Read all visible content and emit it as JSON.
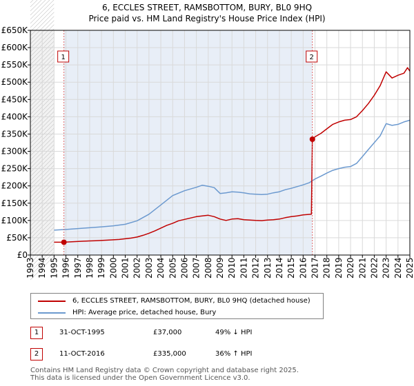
{
  "title": "6, ECCLES STREET, RAMSBOTTOM, BURY, BL0 9HQ",
  "subtitle": "Price paid vs. HM Land Registry's House Price Index (HPI)",
  "colors": {
    "property": "#c00000",
    "hpi": "#6b99cf",
    "grid": "#d9d9d9",
    "shade": "#e8eef7",
    "marker_line": "#e06666"
  },
  "legend": {
    "property_label": "6, ECCLES STREET, RAMSBOTTOM, BURY, BL0 9HQ (detached house)",
    "hpi_label": "HPI: Average price, detached house, Bury"
  },
  "transactions": [
    {
      "id": "1",
      "date": "31-OCT-1995",
      "price": "£37,000",
      "hpi_diff": "49% ↓ HPI"
    },
    {
      "id": "2",
      "date": "11-OCT-2016",
      "price": "£335,000",
      "hpi_diff": "36% ↑ HPI"
    }
  ],
  "footer": {
    "line1": "Contains HM Land Registry data © Crown copyright and database right 2025.",
    "line2": "This data is licensed under the Open Government Licence v3.0."
  },
  "chart_data": {
    "type": "line",
    "title": "6, ECCLES STREET, RAMSBOTTOM, BURY, BL0 9HQ",
    "subtitle": "Price paid vs. HM Land Registry's House Price Index (HPI)",
    "xlabel": "",
    "ylabel": "",
    "xlim": [
      1993,
      2025
    ],
    "ylim": [
      0,
      650000
    ],
    "y_ticks": [
      0,
      50000,
      100000,
      150000,
      200000,
      250000,
      300000,
      350000,
      400000,
      450000,
      500000,
      550000,
      600000,
      650000
    ],
    "y_tick_labels": [
      "£0",
      "£50K",
      "£100K",
      "£150K",
      "£200K",
      "£250K",
      "£300K",
      "£350K",
      "£400K",
      "£450K",
      "£500K",
      "£550K",
      "£600K",
      "£650K"
    ],
    "x_ticks": [
      1993,
      1994,
      1995,
      1996,
      1997,
      1998,
      1999,
      2000,
      2001,
      2002,
      2003,
      2004,
      2005,
      2006,
      2007,
      2008,
      2009,
      2010,
      2011,
      2012,
      2013,
      2014,
      2015,
      2016,
      2017,
      2018,
      2019,
      2020,
      2021,
      2022,
      2023,
      2024,
      2025
    ],
    "x_tick_labels": [
      "1993",
      "1994",
      "1995",
      "1996",
      "1997",
      "1998",
      "1999",
      "2000",
      "2001",
      "2002",
      "2003",
      "2004",
      "2005",
      "2006",
      "2007",
      "2008",
      "2009",
      "2010",
      "2011",
      "2012",
      "2013",
      "2014",
      "2015",
      "2016",
      "2017",
      "2018",
      "2019",
      "2020",
      "2021",
      "2022",
      "2023",
      "2024",
      "2025"
    ],
    "grid": true,
    "hatched_until": 1995.0,
    "sales": [
      {
        "label": "1",
        "x": 1995.83,
        "y": 37000
      },
      {
        "label": "2",
        "x": 2016.78,
        "y": 335000
      }
    ],
    "series": [
      {
        "name": "6, ECCLES STREET, RAMSBOTTOM, BURY, BL0 9HQ (detached house)",
        "color": "#c00000",
        "points": [
          [
            1995.0,
            37000
          ],
          [
            1995.83,
            37000
          ],
          [
            1996.5,
            38500
          ],
          [
            1997.5,
            40000
          ],
          [
            1998.5,
            41500
          ],
          [
            1999.5,
            43000
          ],
          [
            2000.5,
            45000
          ],
          [
            2001.0,
            47000
          ],
          [
            2001.5,
            49000
          ],
          [
            2002.0,
            52000
          ],
          [
            2002.5,
            57000
          ],
          [
            2003.0,
            63000
          ],
          [
            2003.5,
            70000
          ],
          [
            2004.0,
            78000
          ],
          [
            2004.5,
            86000
          ],
          [
            2005.0,
            92000
          ],
          [
            2005.5,
            99000
          ],
          [
            2006.0,
            103000
          ],
          [
            2006.5,
            107000
          ],
          [
            2007.0,
            111000
          ],
          [
            2007.5,
            113000
          ],
          [
            2008.0,
            115000
          ],
          [
            2008.5,
            111000
          ],
          [
            2009.0,
            104000
          ],
          [
            2009.5,
            100000
          ],
          [
            2010.0,
            104000
          ],
          [
            2010.5,
            105000
          ],
          [
            2011.0,
            102000
          ],
          [
            2011.5,
            101000
          ],
          [
            2012.0,
            100000
          ],
          [
            2012.5,
            99500
          ],
          [
            2013.0,
            101000
          ],
          [
            2013.5,
            102000
          ],
          [
            2014.0,
            104000
          ],
          [
            2014.5,
            108000
          ],
          [
            2015.0,
            111000
          ],
          [
            2015.5,
            113000
          ],
          [
            2016.0,
            116000
          ],
          [
            2016.7,
            118000
          ],
          [
            2016.78,
            335000
          ],
          [
            2017.0,
            342000
          ],
          [
            2017.5,
            352000
          ],
          [
            2018.0,
            365000
          ],
          [
            2018.5,
            378000
          ],
          [
            2019.0,
            385000
          ],
          [
            2019.5,
            390000
          ],
          [
            2020.0,
            392000
          ],
          [
            2020.5,
            400000
          ],
          [
            2021.0,
            418000
          ],
          [
            2021.5,
            438000
          ],
          [
            2022.0,
            462000
          ],
          [
            2022.5,
            490000
          ],
          [
            2023.0,
            530000
          ],
          [
            2023.5,
            512000
          ],
          [
            2024.0,
            520000
          ],
          [
            2024.5,
            526000
          ],
          [
            2024.8,
            542000
          ],
          [
            2025.0,
            532000
          ]
        ]
      },
      {
        "name": "HPI: Average price, detached house, Bury",
        "color": "#6b99cf",
        "points": [
          [
            1995.0,
            72000
          ],
          [
            1996.0,
            74000
          ],
          [
            1997.0,
            76500
          ],
          [
            1998.0,
            79000
          ],
          [
            1999.0,
            81500
          ],
          [
            2000.0,
            84500
          ],
          [
            2001.0,
            89000
          ],
          [
            2002.0,
            99000
          ],
          [
            2003.0,
            118000
          ],
          [
            2004.0,
            145000
          ],
          [
            2005.0,
            172000
          ],
          [
            2006.0,
            186000
          ],
          [
            2007.0,
            196000
          ],
          [
            2007.5,
            202000
          ],
          [
            2008.0,
            199000
          ],
          [
            2008.5,
            195000
          ],
          [
            2009.0,
            178000
          ],
          [
            2009.5,
            180000
          ],
          [
            2010.0,
            183000
          ],
          [
            2010.5,
            182000
          ],
          [
            2011.0,
            180000
          ],
          [
            2011.5,
            177000
          ],
          [
            2012.0,
            176000
          ],
          [
            2012.5,
            175000
          ],
          [
            2013.0,
            176000
          ],
          [
            2013.5,
            180000
          ],
          [
            2014.0,
            183000
          ],
          [
            2014.5,
            189000
          ],
          [
            2015.0,
            193000
          ],
          [
            2015.5,
            198000
          ],
          [
            2016.0,
            203000
          ],
          [
            2016.5,
            209000
          ],
          [
            2017.0,
            220000
          ],
          [
            2017.5,
            228000
          ],
          [
            2018.0,
            237000
          ],
          [
            2018.5,
            245000
          ],
          [
            2019.0,
            250000
          ],
          [
            2019.5,
            254000
          ],
          [
            2020.0,
            256000
          ],
          [
            2020.5,
            265000
          ],
          [
            2021.0,
            285000
          ],
          [
            2021.5,
            305000
          ],
          [
            2022.0,
            325000
          ],
          [
            2022.5,
            345000
          ],
          [
            2023.0,
            380000
          ],
          [
            2023.5,
            375000
          ],
          [
            2024.0,
            378000
          ],
          [
            2024.5,
            385000
          ],
          [
            2025.0,
            390000
          ]
        ]
      }
    ]
  }
}
